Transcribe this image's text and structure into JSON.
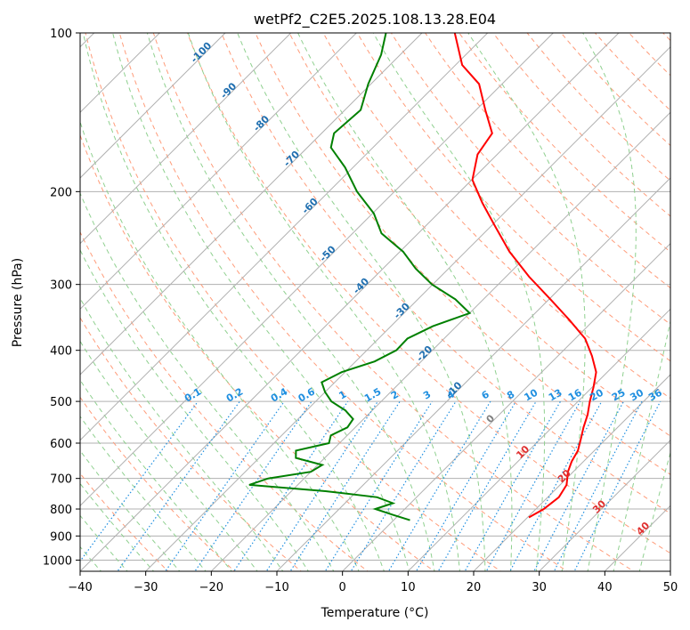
{
  "chart_data": {
    "type": "line",
    "title": "wetPf2_C2E5.2025.108.13.28.E04",
    "xlabel": "Temperature (°C)",
    "ylabel": "Pressure (hPa)",
    "xlim": [
      -40,
      50
    ],
    "ylim": [
      1050,
      100
    ],
    "y_scale": "log",
    "skew": "skew-T",
    "grid": true,
    "x_ticks": [
      -40,
      -30,
      -20,
      -10,
      0,
      10,
      20,
      30,
      40,
      50
    ],
    "y_ticks": [
      100,
      200,
      300,
      400,
      500,
      600,
      700,
      800,
      900,
      1000
    ],
    "colors": {
      "temperature": "#ff0000",
      "dewpoint": "#008000",
      "isotherm": "#b0b0b0",
      "dry_adiabat": "#ff9c7a",
      "moist_adiabat": "#8fd08f",
      "mixing_ratio": "#1f8fe0",
      "moist_label": "#1f6fb0",
      "dry_label": "#e03030",
      "zero_label": "#808080"
    },
    "series": [
      {
        "name": "Temperature",
        "p": [
          830,
          800,
          760,
          720,
          680,
          650,
          620,
          590,
          560,
          530,
          500,
          470,
          440,
          410,
          380,
          350,
          320,
          290,
          260,
          230,
          210,
          190,
          170,
          155,
          140,
          125,
          115,
          105,
          100
        ],
        "t": [
          20.2,
          21.2,
          21.7,
          21.0,
          19.2,
          18.2,
          17.5,
          16.2,
          14.8,
          13.5,
          11.8,
          10.2,
          8.3,
          5.2,
          1.5,
          -3.8,
          -9.8,
          -16.5,
          -23.3,
          -30.0,
          -34.9,
          -39.9,
          -43.0,
          -44.0,
          -48.6,
          -53.5,
          -59.0,
          -62.9,
          -65.0
        ]
      },
      {
        "name": "Dewpoint",
        "p": [
          840,
          820,
          800,
          780,
          760,
          740,
          720,
          700,
          680,
          660,
          640,
          620,
          600,
          580,
          560,
          540,
          520,
          500,
          480,
          460,
          440,
          420,
          400,
          380,
          360,
          340,
          320,
          300,
          280,
          260,
          240,
          220,
          200,
          180,
          165,
          155,
          140,
          125,
          110,
          100
        ],
        "t": [
          2.5,
          -1.0,
          -4.5,
          -2.7,
          -6.0,
          -14.8,
          -27.4,
          -25.5,
          -20.0,
          -19.3,
          -24.4,
          -25.5,
          -21.6,
          -22.5,
          -21.2,
          -21.6,
          -24.1,
          -27.6,
          -30.0,
          -32.0,
          -30.5,
          -27.1,
          -25.5,
          -25.6,
          -23.6,
          -20.0,
          -24.3,
          -30.1,
          -35.0,
          -39.5,
          -45.6,
          -49.8,
          -55.7,
          -61.2,
          -66.4,
          -68.1,
          -67.6,
          -70.4,
          -72.9,
          -75.5
        ]
      }
    ],
    "isotherm_labels": [
      "-100",
      "-90",
      "-80",
      "-70",
      "-60",
      "-50",
      "-40",
      "-30",
      "-20",
      "-10",
      "0",
      "10",
      "20",
      "30",
      "40"
    ],
    "mixing_ratio_labels": [
      "0.1",
      "0.2",
      "0.4",
      "0.6",
      "1",
      "1.5",
      "2",
      "3",
      "4",
      "6",
      "8",
      "10",
      "13",
      "16",
      "20",
      "25",
      "30",
      "36"
    ]
  }
}
